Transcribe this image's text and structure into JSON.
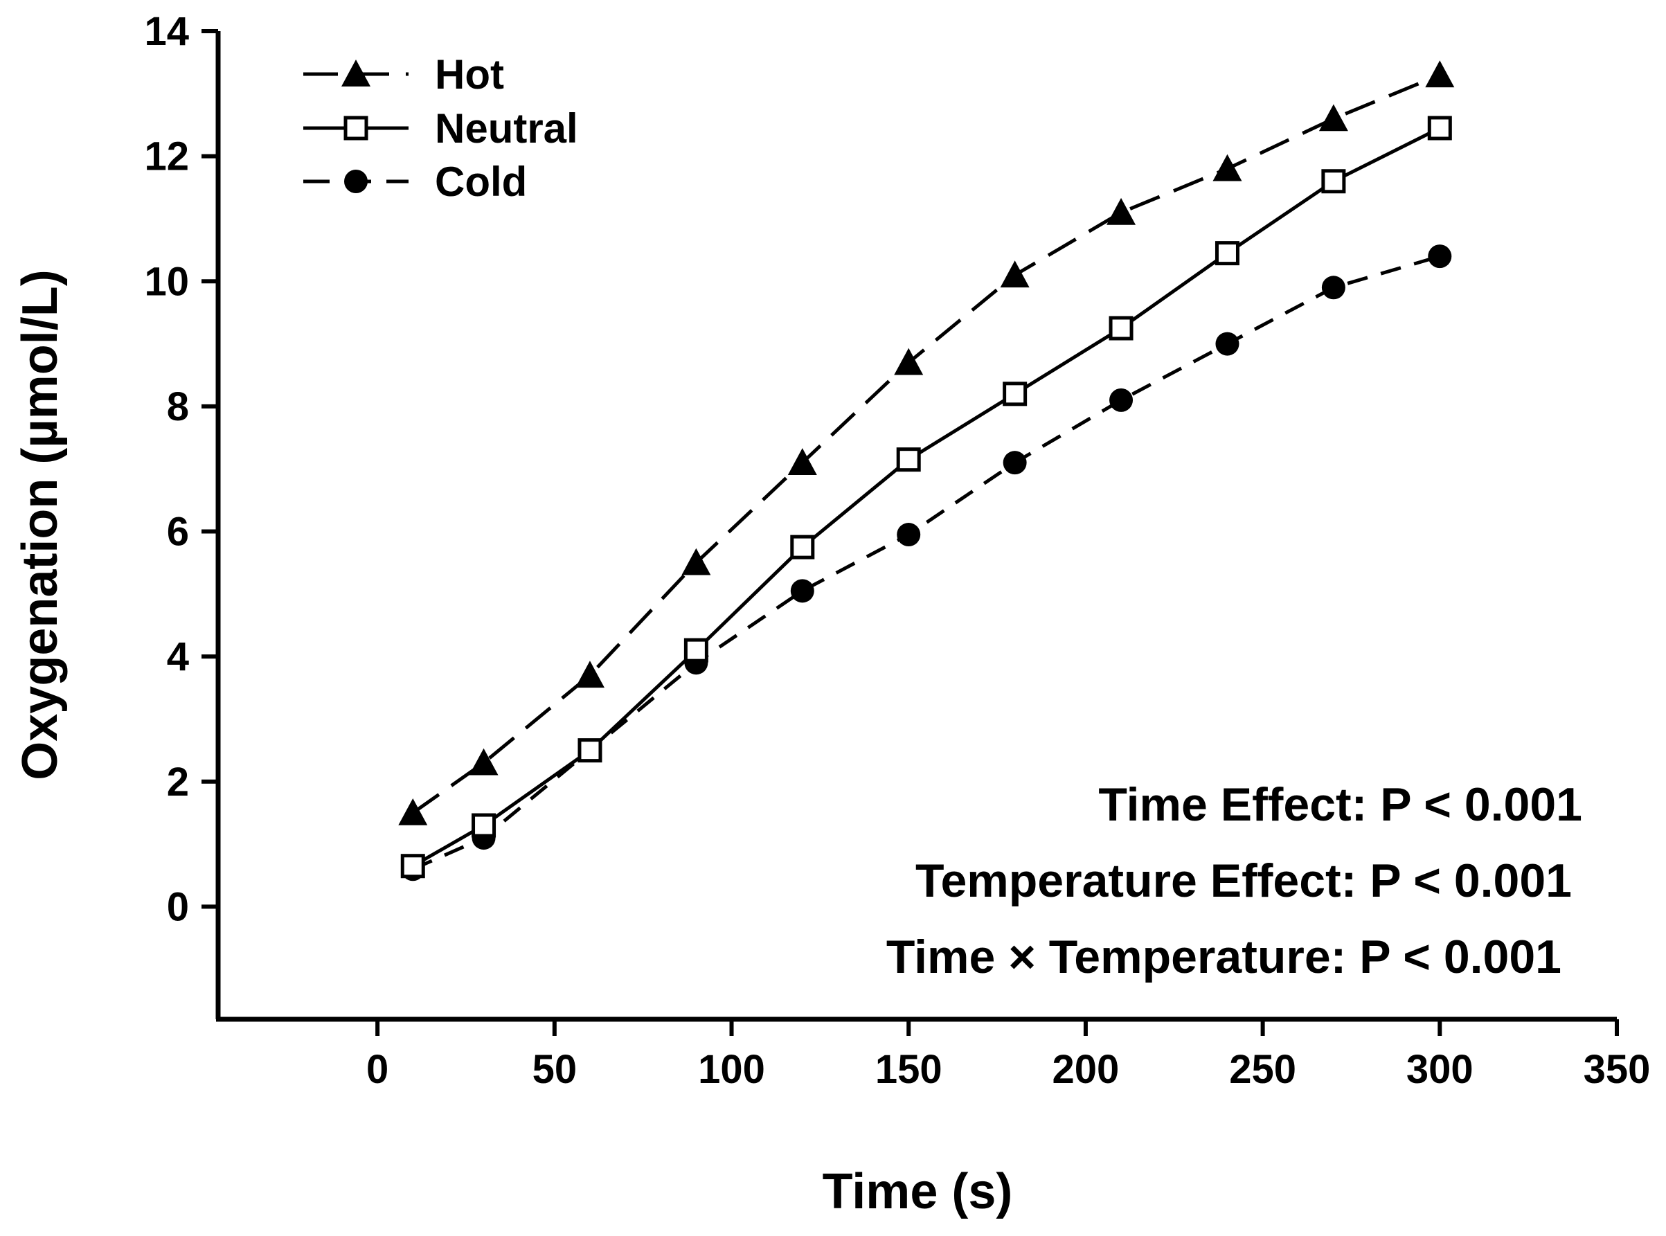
{
  "chart_data": {
    "type": "line",
    "title": "",
    "xlabel": "Time (s)",
    "ylabel": "Oxygenation (µmol/L)",
    "xlim": [
      -45,
      350
    ],
    "ylim": [
      -1.8,
      14
    ],
    "xticks": [
      0,
      50,
      100,
      150,
      200,
      250,
      300,
      350
    ],
    "yticks": [
      0,
      2,
      4,
      6,
      8,
      10,
      12,
      14
    ],
    "x": [
      10,
      30,
      60,
      90,
      120,
      150,
      180,
      210,
      240,
      270,
      300
    ],
    "series": [
      {
        "name": "Hot",
        "marker": "filled-triangle",
        "line": "long-dash",
        "values": [
          1.5,
          2.3,
          3.7,
          5.5,
          7.1,
          8.7,
          10.1,
          11.1,
          11.8,
          12.6,
          13.3
        ]
      },
      {
        "name": "Neutral",
        "marker": "open-square",
        "line": "solid",
        "values": [
          0.65,
          1.3,
          2.5,
          4.1,
          5.75,
          7.15,
          8.2,
          9.25,
          10.45,
          11.6,
          12.45
        ]
      },
      {
        "name": "Cold",
        "marker": "filled-circle",
        "line": "dash",
        "values": [
          0.6,
          1.1,
          2.5,
          3.9,
          5.05,
          5.95,
          7.1,
          8.1,
          9.0,
          9.9,
          10.4
        ]
      }
    ],
    "legend_position": "top-left",
    "grid": false,
    "annotations": [
      "Time Effect: P < 0.001",
      "Temperature Effect: P < 0.001",
      "Time × Temperature: P < 0.001"
    ],
    "colors": {
      "line": "#000000",
      "background": "#ffffff"
    }
  }
}
